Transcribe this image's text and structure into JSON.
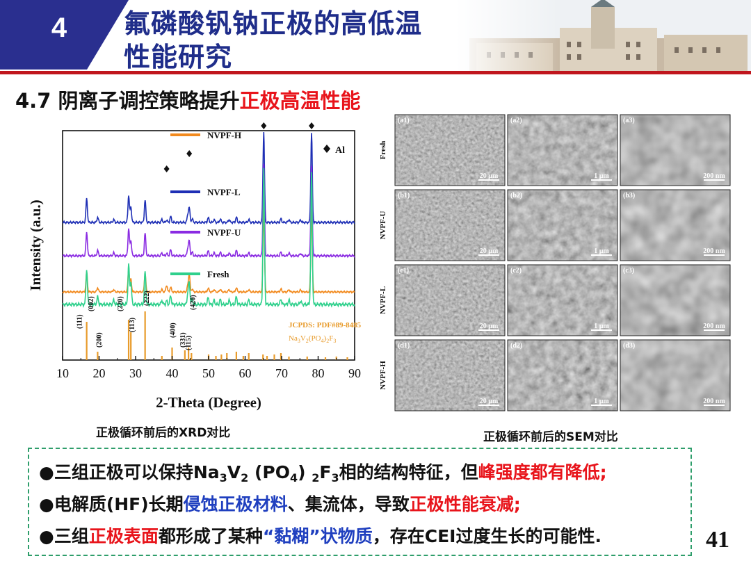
{
  "header": {
    "section_number": "4",
    "title_line1": "氟磷酸钒钠正极的高低温",
    "title_line2": "性能研究",
    "colors": {
      "tab": "#2a2f8f",
      "title": "#1f2d8a",
      "rule": "#c0161d"
    }
  },
  "subtitle": {
    "prefix": "4.7 阴离子调控策略提升",
    "highlight": "正极高温性能"
  },
  "xrd": {
    "ylabel": "Intensity (a.u.)",
    "xlabel": "2-Theta (Degree)",
    "ticks": [
      "10",
      "20",
      "30",
      "40",
      "50",
      "60",
      "70",
      "80",
      "90"
    ],
    "legend_al": "Al",
    "jcpds": "JCPDS: PDF#89-8485",
    "formula_parts": [
      "Na",
      "3",
      "V",
      "2",
      "(PO",
      "4",
      ")",
      "2",
      "F",
      "3"
    ],
    "hkl": [
      "(111)",
      "(002)",
      "(200)",
      "(220)",
      "(113)",
      "(222)",
      "(400)",
      "(331)",
      "(115)",
      "(420)"
    ],
    "series": [
      {
        "name": "NVPF-H",
        "color": "#f28a1e"
      },
      {
        "name": "NVPF-L",
        "color": "#1e2fb5"
      },
      {
        "name": "NVPF-U",
        "color": "#8a2be2"
      },
      {
        "name": "Fresh",
        "color": "#2fd08c"
      }
    ],
    "ref_color": "#e89b2b"
  },
  "sem": {
    "rows": [
      "Fresh",
      "NVPF-U",
      "NVPF-L",
      "NVPF-H"
    ],
    "panels": [
      [
        "(a1)",
        "(a2)",
        "(a3)"
      ],
      [
        "(b1)",
        "(b2)",
        "(b3)"
      ],
      [
        "(c1)",
        "(c2)",
        "(c3)"
      ],
      [
        "(d1)",
        "(d2)",
        "(d3)"
      ]
    ],
    "scales": [
      "20 μm",
      "1 μm",
      "200 nm"
    ]
  },
  "captions": {
    "xrd": "正极循环前后的XRD对比",
    "sem": "正极循环前后的SEM对比"
  },
  "bullets": {
    "b1": {
      "text1": "●三组正极可以保持Na",
      "sub1": "3",
      "text2": "V",
      "sub2": "2",
      "text3": " (PO",
      "sub3": "4",
      "text4": ") ",
      "sub4": "2",
      "text5": "F",
      "sub5": "3",
      "text6": "相的结构特征，但",
      "red": "峰强度都有降低;"
    },
    "b2": {
      "text1": "●电解质(HF)长期",
      "blue": "侵蚀正极材料",
      "text2": "、集流体，导致",
      "red": "正极性能衰减;"
    },
    "b3": {
      "text1": "●三组",
      "red": "正极表面",
      "text2": "都形成了某种",
      "blue": "“黏糊”状物质",
      "text3": "，存在CEI过度生长的可能性."
    }
  },
  "page_number": "41"
}
